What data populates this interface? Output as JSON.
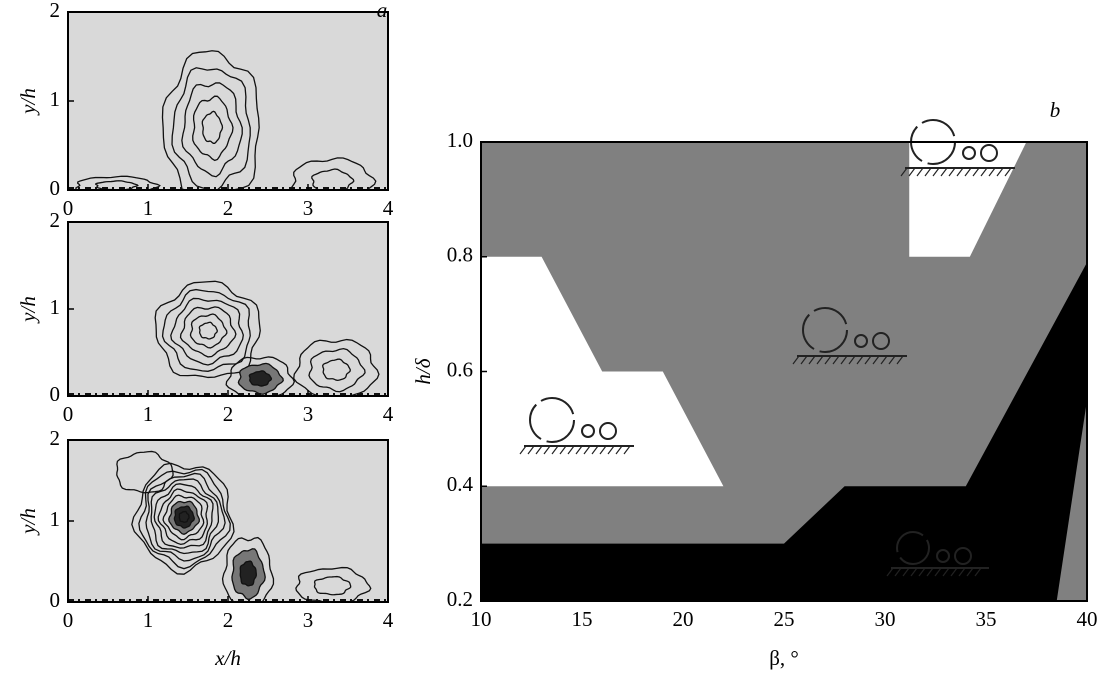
{
  "chart_data": [
    {
      "type": "contour",
      "panel_label": "a",
      "ylabel": "y/h",
      "xlim": [
        0,
        4
      ],
      "ylim": [
        0,
        2
      ],
      "xticks": [
        0,
        1,
        2,
        3,
        4
      ],
      "yticks": [
        0,
        1,
        2
      ]
    },
    {
      "type": "contour",
      "ylabel": "y/h",
      "xlim": [
        0,
        4
      ],
      "ylim": [
        0,
        2
      ],
      "xticks": [
        0,
        1,
        2,
        3,
        4
      ],
      "yticks": [
        0,
        1,
        2
      ]
    },
    {
      "type": "contour",
      "ylabel": "y/h",
      "xlabel": "x/h",
      "xlim": [
        0,
        4
      ],
      "ylim": [
        0,
        2
      ],
      "xticks": [
        0,
        1,
        2,
        3,
        4
      ],
      "yticks": [
        0,
        1,
        2
      ]
    },
    {
      "type": "regions",
      "panel_label": "b",
      "xlabel": "β, °",
      "ylabel": "h/δ",
      "xlim": [
        10,
        40
      ],
      "ylim": [
        0.2,
        1.0
      ],
      "xticks": [
        10,
        15,
        20,
        25,
        30,
        35,
        40
      ],
      "yticks": [
        0.2,
        0.4,
        0.6,
        0.8,
        {
          "value": 1,
          "label": "1.0"
        }
      ],
      "regions": [
        {
          "color": "#808080",
          "x": [
            10,
            40,
            40,
            10
          ],
          "y": [
            1.0,
            1.0,
            0.2,
            0.2
          ]
        },
        {
          "color": "#ffffff",
          "x": [
            10,
            13,
            16,
            19,
            22,
            10
          ],
          "y": [
            0.8,
            0.8,
            0.6,
            0.6,
            0.4,
            0.4
          ]
        },
        {
          "color": "#ffffff",
          "x": [
            31.2,
            37,
            34.2,
            31.2
          ],
          "y": [
            1.0,
            1.0,
            0.8,
            0.8
          ]
        },
        {
          "color": "#000000",
          "x": [
            10,
            25,
            28,
            34,
            40,
            40,
            10
          ],
          "y": [
            0.3,
            0.3,
            0.4,
            0.4,
            0.79,
            0.2,
            0.2
          ]
        },
        {
          "color": "#808080",
          "x": [
            38.5,
            40,
            40
          ],
          "y": [
            0.2,
            0.55,
            0.2
          ]
        }
      ]
    }
  ]
}
